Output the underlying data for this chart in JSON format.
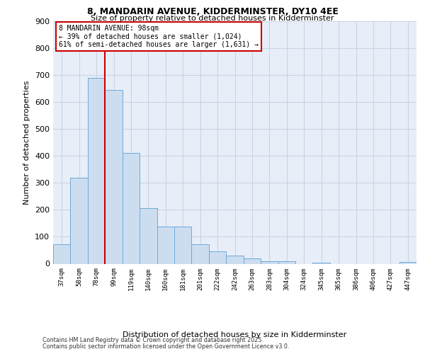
{
  "title_line1": "8, MANDARIN AVENUE, KIDDERMINSTER, DY10 4EE",
  "title_line2": "Size of property relative to detached houses in Kidderminster",
  "xlabel": "Distribution of detached houses by size in Kidderminster",
  "ylabel": "Number of detached properties",
  "categories": [
    "37sqm",
    "58sqm",
    "78sqm",
    "99sqm",
    "119sqm",
    "140sqm",
    "160sqm",
    "181sqm",
    "201sqm",
    "222sqm",
    "242sqm",
    "263sqm",
    "283sqm",
    "304sqm",
    "324sqm",
    "345sqm",
    "365sqm",
    "386sqm",
    "406sqm",
    "427sqm",
    "447sqm"
  ],
  "values": [
    72,
    320,
    690,
    645,
    410,
    207,
    137,
    137,
    72,
    45,
    30,
    20,
    10,
    10,
    0,
    5,
    0,
    0,
    0,
    0,
    7
  ],
  "bar_color": "#cdddf0",
  "bar_edge_color": "#6baad8",
  "grid_color": "#c8d4e4",
  "background_color": "#e8eef8",
  "vline_bin_index": 3,
  "vline_color": "#cc0000",
  "annotation_line1": "8 MANDARIN AVENUE: 98sqm",
  "annotation_line2": "← 39% of detached houses are smaller (1,024)",
  "annotation_line3": "61% of semi-detached houses are larger (1,631) →",
  "annotation_box_edgecolor": "#cc0000",
  "ylim_max": 900,
  "yticks": [
    0,
    100,
    200,
    300,
    400,
    500,
    600,
    700,
    800,
    900
  ],
  "footer_line1": "Contains HM Land Registry data © Crown copyright and database right 2025.",
  "footer_line2": "Contains public sector information licensed under the Open Government Licence v3.0."
}
